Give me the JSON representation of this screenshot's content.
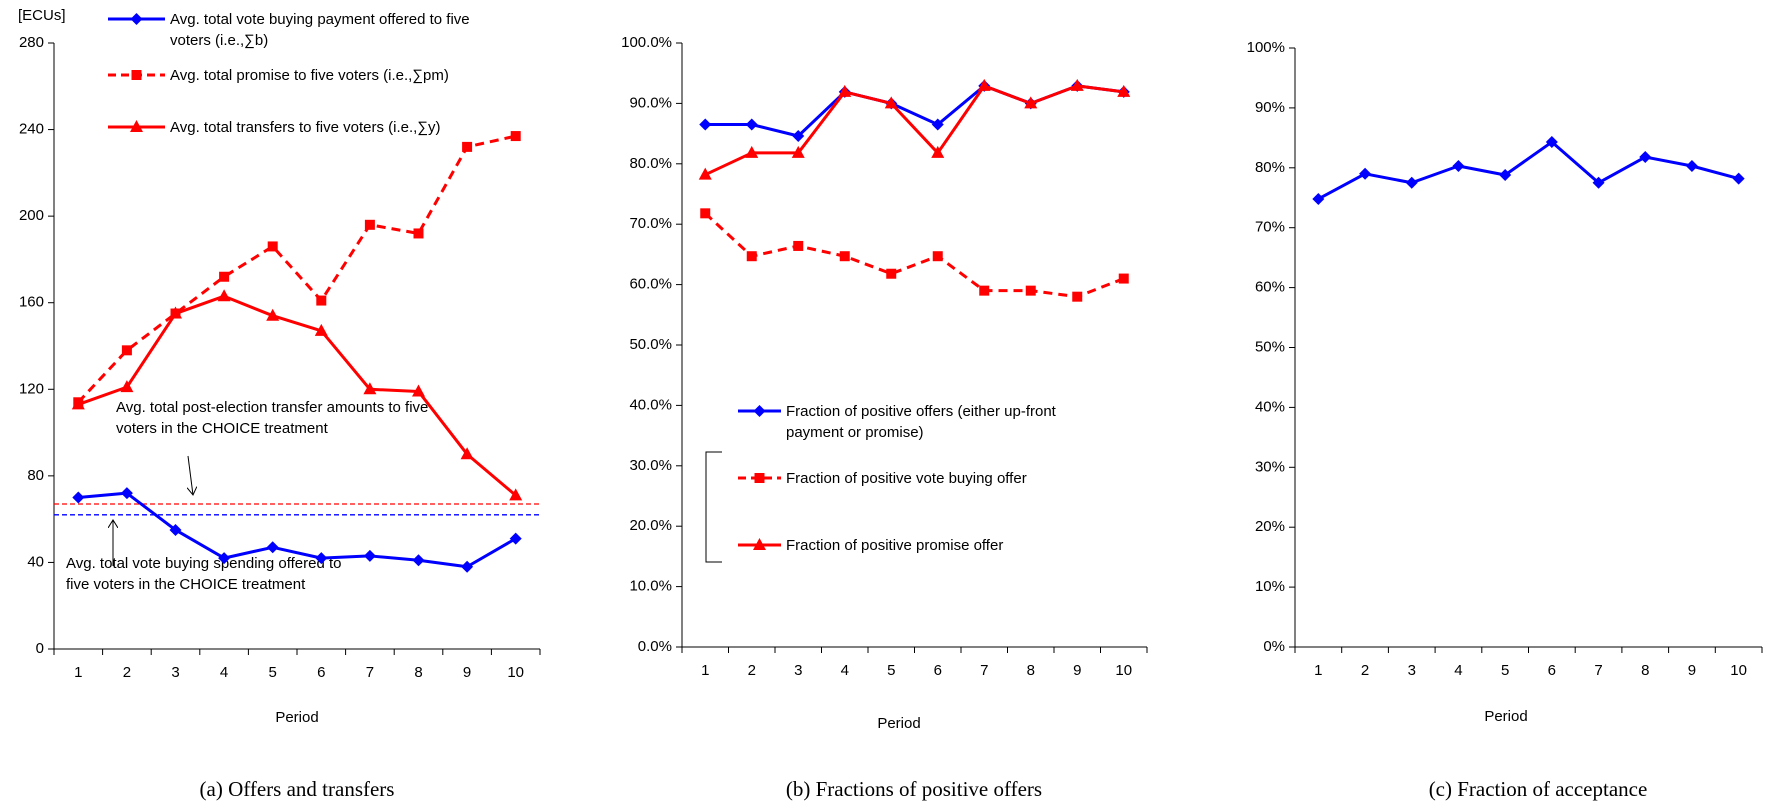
{
  "chart_data": [
    {
      "type": "line",
      "title": "(a) Offers and transfers",
      "x_label": "Period",
      "y_label": "[ECUs]",
      "categories": [
        "1",
        "2",
        "3",
        "4",
        "5",
        "6",
        "7",
        "8",
        "9",
        "10"
      ],
      "ylim": [
        0,
        280
      ],
      "yticks": [
        0,
        40,
        80,
        120,
        160,
        200,
        240,
        280
      ],
      "series": [
        {
          "name": "Avg. total vote buying payment offered to five voters (i.e.,∑b)",
          "color": "#0000ff",
          "marker": "diamond",
          "dashed": false,
          "values": [
            70,
            72,
            55,
            42,
            47,
            42,
            43,
            41,
            38,
            51
          ]
        },
        {
          "name": "Avg. total promise to five voters (i.e.,∑pm)",
          "color": "#ff0000",
          "marker": "square",
          "dashed": true,
          "values": [
            114,
            138,
            155,
            172,
            186,
            161,
            196,
            192,
            232,
            237
          ]
        },
        {
          "name": "Avg. total transfers to five voters (i.e.,∑y)",
          "color": "#ff0000",
          "marker": "triangle",
          "dashed": false,
          "values": [
            113,
            121,
            155,
            163,
            154,
            147,
            120,
            119,
            90,
            71
          ]
        }
      ],
      "reference_lines": [
        {
          "value": 67,
          "color": "#ff0000"
        },
        {
          "value": 62,
          "color": "#0000ff"
        }
      ],
      "annotations": [
        "Avg. total post-election transfer amounts to five voters in the CHOICE treatment",
        "Avg. total vote buying spending  offered to five voters in the CHOICE treatment"
      ]
    },
    {
      "type": "line",
      "title": "(b) Fractions of positive offers",
      "x_label": "Period",
      "categories": [
        "1",
        "2",
        "3",
        "4",
        "5",
        "6",
        "7",
        "8",
        "9",
        "10"
      ],
      "ylim": [
        0,
        100
      ],
      "yticks": [
        {
          "value": 0,
          "label": "0.0%"
        },
        {
          "value": 10,
          "label": "10.0%"
        },
        {
          "value": 20,
          "label": "20.0%"
        },
        {
          "value": 30,
          "label": "30.0%"
        },
        {
          "value": 40,
          "label": "40.0%"
        },
        {
          "value": 50,
          "label": "50.0%"
        },
        {
          "value": 60,
          "label": "60.0%"
        },
        {
          "value": 70,
          "label": "70.0%"
        },
        {
          "value": 80,
          "label": "80.0%"
        },
        {
          "value": 90,
          "label": "90.0%"
        },
        {
          "value": 100,
          "label": "100.0%"
        }
      ],
      "series": [
        {
          "name": "Fraction of positive offers (either up-front payment or promise)",
          "color": "#0000ff",
          "marker": "diamond",
          "dashed": false,
          "values": [
            86.5,
            86.5,
            84.6,
            91.9,
            90,
            86.5,
            92.9,
            90,
            92.9,
            91.9
          ]
        },
        {
          "name": "Fraction of positive vote buying offer",
          "color": "#ff0000",
          "marker": "square",
          "dashed": true,
          "values": [
            71.8,
            64.7,
            66.4,
            64.7,
            61.8,
            64.7,
            59,
            59,
            58,
            61
          ]
        },
        {
          "name": "Fraction of positive promise offer",
          "color": "#ff0000",
          "marker": "triangle",
          "dashed": false,
          "values": [
            78.2,
            81.8,
            81.8,
            91.9,
            90,
            81.8,
            92.9,
            90,
            92.9,
            91.9
          ]
        }
      ]
    },
    {
      "type": "line",
      "title": "(c) Fraction of acceptance",
      "x_label": "Period",
      "categories": [
        "1",
        "2",
        "3",
        "4",
        "5",
        "6",
        "7",
        "8",
        "9",
        "10"
      ],
      "ylim": [
        0,
        100
      ],
      "yticks": [
        {
          "value": 0,
          "label": "0%"
        },
        {
          "value": 10,
          "label": "10%"
        },
        {
          "value": 20,
          "label": "20%"
        },
        {
          "value": 30,
          "label": "30%"
        },
        {
          "value": 40,
          "label": "40%"
        },
        {
          "value": 50,
          "label": "50%"
        },
        {
          "value": 60,
          "label": "60%"
        },
        {
          "value": 70,
          "label": "70%"
        },
        {
          "value": 80,
          "label": "80%"
        },
        {
          "value": 90,
          "label": "90%"
        },
        {
          "value": 100,
          "label": "100%"
        }
      ],
      "series": [
        {
          "color": "#0000ff",
          "marker": "diamond",
          "dashed": false,
          "values": [
            74.8,
            79,
            77.5,
            80.3,
            78.8,
            84.3,
            77.5,
            81.8,
            80.3,
            78.2
          ]
        }
      ]
    }
  ]
}
